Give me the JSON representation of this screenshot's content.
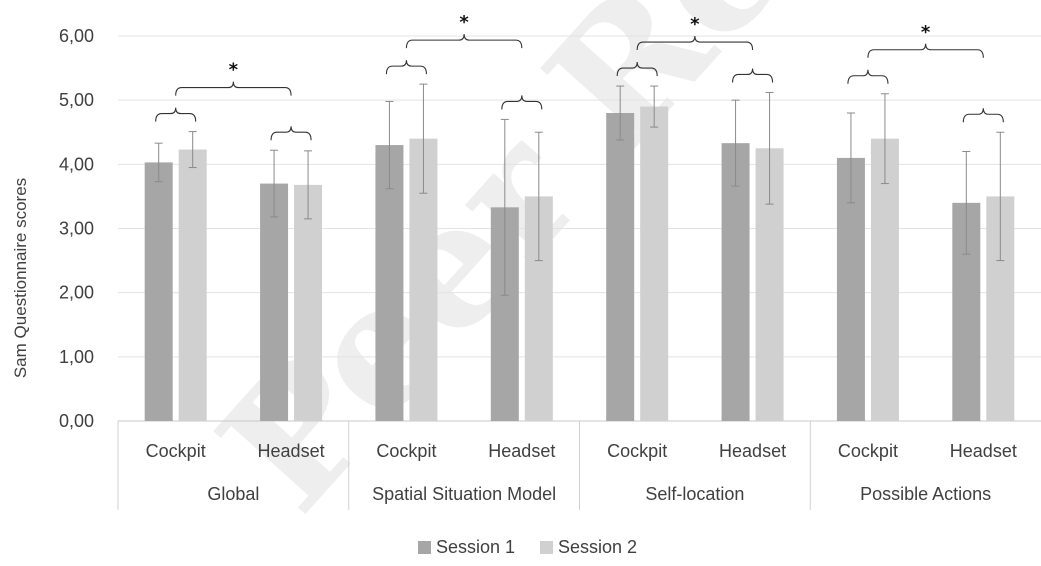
{
  "watermark_text": "Peer Review",
  "chart_data": {
    "type": "bar",
    "title": "",
    "ylabel": "Sam Questionnaire scores",
    "xlabel": "",
    "ylim": [
      0,
      6
    ],
    "y_ticks": [
      "0,00",
      "1,00",
      "2,00",
      "3,00",
      "4,00",
      "5,00",
      "6,00"
    ],
    "grid": true,
    "legend_position": "bottom",
    "colors": {
      "session1": "#a6a6a6",
      "session2": "#d0d0d0"
    },
    "groups": [
      "Global",
      "Spatial Situation Model",
      "Self-location",
      "Possible Actions"
    ],
    "categories": [
      "Cockpit",
      "Headset",
      "Cockpit",
      "Headset",
      "Cockpit",
      "Headset",
      "Cockpit",
      "Headset"
    ],
    "series": [
      {
        "name": "Session 1",
        "values": [
          4.03,
          3.7,
          4.3,
          3.33,
          4.8,
          4.33,
          4.1,
          3.4
        ],
        "error": [
          0.3,
          0.52,
          0.68,
          1.37,
          0.42,
          0.67,
          0.7,
          0.8
        ]
      },
      {
        "name": "Session 2",
        "values": [
          4.23,
          3.68,
          4.4,
          3.5,
          4.9,
          4.25,
          4.4,
          3.5
        ],
        "error": [
          0.28,
          0.53,
          0.85,
          1.0,
          0.32,
          0.87,
          0.7,
          1.0
        ]
      }
    ],
    "annotations": [
      {
        "text": "*",
        "group": "Global"
      },
      {
        "text": "*",
        "group": "Spatial Situation Model"
      },
      {
        "text": "*",
        "group": "Self-location"
      },
      {
        "text": "*",
        "group": "Possible Actions"
      }
    ]
  }
}
